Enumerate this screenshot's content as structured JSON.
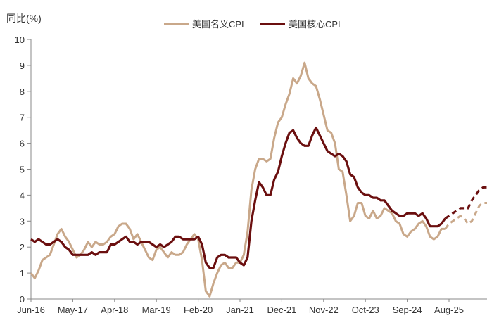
{
  "chart_data": {
    "type": "line",
    "ylabel": "同比(%)",
    "ylim": [
      0,
      10
    ],
    "yticks": [
      0,
      1,
      2,
      3,
      4,
      5,
      6,
      7,
      8,
      9,
      10
    ],
    "x_tick_labels": [
      "Jun-16",
      "May-17",
      "Apr-18",
      "Mar-19",
      "Feb-20",
      "Jan-21",
      "Dec-21",
      "Nov-22",
      "Oct-23",
      "Sep-24",
      "Aug-25"
    ],
    "x_start": "Jun-16",
    "x_end": "Jun-26",
    "legend_position": "top-center",
    "grid": false,
    "series": [
      {
        "name": "美国名义CPI",
        "color": "#c9a88a",
        "actual": [
          [
            "2016-06",
            1.0
          ],
          [
            "2016-07",
            0.8
          ],
          [
            "2016-08",
            1.1
          ],
          [
            "2016-09",
            1.5
          ],
          [
            "2016-10",
            1.6
          ],
          [
            "2016-11",
            1.7
          ],
          [
            "2016-12",
            2.1
          ],
          [
            "2017-01",
            2.5
          ],
          [
            "2017-02",
            2.7
          ],
          [
            "2017-03",
            2.4
          ],
          [
            "2017-04",
            2.2
          ],
          [
            "2017-05",
            1.9
          ],
          [
            "2017-06",
            1.6
          ],
          [
            "2017-07",
            1.7
          ],
          [
            "2017-08",
            1.9
          ],
          [
            "2017-09",
            2.2
          ],
          [
            "2017-10",
            2.0
          ],
          [
            "2017-11",
            2.2
          ],
          [
            "2017-12",
            2.1
          ],
          [
            "2018-01",
            2.1
          ],
          [
            "2018-02",
            2.2
          ],
          [
            "2018-03",
            2.4
          ],
          [
            "2018-04",
            2.5
          ],
          [
            "2018-05",
            2.8
          ],
          [
            "2018-06",
            2.9
          ],
          [
            "2018-07",
            2.9
          ],
          [
            "2018-08",
            2.7
          ],
          [
            "2018-09",
            2.3
          ],
          [
            "2018-10",
            2.5
          ],
          [
            "2018-11",
            2.2
          ],
          [
            "2018-12",
            1.9
          ],
          [
            "2019-01",
            1.6
          ],
          [
            "2019-02",
            1.5
          ],
          [
            "2019-03",
            1.9
          ],
          [
            "2019-04",
            2.0
          ],
          [
            "2019-05",
            1.8
          ],
          [
            "2019-06",
            1.6
          ],
          [
            "2019-07",
            1.8
          ],
          [
            "2019-08",
            1.7
          ],
          [
            "2019-09",
            1.7
          ],
          [
            "2019-10",
            1.8
          ],
          [
            "2019-11",
            2.1
          ],
          [
            "2019-12",
            2.3
          ],
          [
            "2020-01",
            2.5
          ],
          [
            "2020-02",
            2.3
          ],
          [
            "2020-03",
            1.5
          ],
          [
            "2020-04",
            0.3
          ],
          [
            "2020-05",
            0.1
          ],
          [
            "2020-06",
            0.6
          ],
          [
            "2020-07",
            1.0
          ],
          [
            "2020-08",
            1.3
          ],
          [
            "2020-09",
            1.4
          ],
          [
            "2020-10",
            1.2
          ],
          [
            "2020-11",
            1.2
          ],
          [
            "2020-12",
            1.4
          ],
          [
            "2021-01",
            1.4
          ],
          [
            "2021-02",
            1.7
          ],
          [
            "2021-03",
            2.6
          ],
          [
            "2021-04",
            4.2
          ],
          [
            "2021-05",
            5.0
          ],
          [
            "2021-06",
            5.4
          ],
          [
            "2021-07",
            5.4
          ],
          [
            "2021-08",
            5.3
          ],
          [
            "2021-09",
            5.4
          ],
          [
            "2021-10",
            6.2
          ],
          [
            "2021-11",
            6.8
          ],
          [
            "2021-12",
            7.0
          ],
          [
            "2022-01",
            7.5
          ],
          [
            "2022-02",
            7.9
          ],
          [
            "2022-03",
            8.5
          ],
          [
            "2022-04",
            8.3
          ],
          [
            "2022-05",
            8.6
          ],
          [
            "2022-06",
            9.1
          ],
          [
            "2022-07",
            8.5
          ],
          [
            "2022-08",
            8.3
          ],
          [
            "2022-09",
            8.2
          ],
          [
            "2022-10",
            7.7
          ],
          [
            "2022-11",
            7.1
          ],
          [
            "2022-12",
            6.5
          ],
          [
            "2023-01",
            6.4
          ],
          [
            "2023-02",
            6.0
          ],
          [
            "2023-03",
            5.0
          ],
          [
            "2023-04",
            4.9
          ],
          [
            "2023-05",
            4.0
          ],
          [
            "2023-06",
            3.0
          ],
          [
            "2023-07",
            3.2
          ],
          [
            "2023-08",
            3.7
          ],
          [
            "2023-09",
            3.7
          ],
          [
            "2023-10",
            3.2
          ],
          [
            "2023-11",
            3.1
          ],
          [
            "2023-12",
            3.4
          ],
          [
            "2024-01",
            3.1
          ],
          [
            "2024-02",
            3.2
          ],
          [
            "2024-03",
            3.5
          ],
          [
            "2024-04",
            3.4
          ],
          [
            "2024-05",
            3.3
          ],
          [
            "2024-06",
            3.0
          ],
          [
            "2024-07",
            2.9
          ],
          [
            "2024-08",
            2.5
          ],
          [
            "2024-09",
            2.4
          ],
          [
            "2024-10",
            2.6
          ],
          [
            "2024-11",
            2.7
          ],
          [
            "2024-12",
            2.9
          ],
          [
            "2025-01",
            3.0
          ],
          [
            "2025-02",
            2.8
          ],
          [
            "2025-03",
            2.4
          ],
          [
            "2025-04",
            2.3
          ],
          [
            "2025-05",
            2.4
          ],
          [
            "2025-06",
            2.7
          ],
          [
            "2025-07",
            2.7
          ]
        ],
        "forecast": [
          [
            "2025-07",
            2.7
          ],
          [
            "2025-08",
            2.9
          ],
          [
            "2025-09",
            3.0
          ],
          [
            "2025-10",
            3.1
          ],
          [
            "2025-11",
            3.2
          ],
          [
            "2025-12",
            3.1
          ],
          [
            "2026-01",
            2.9
          ],
          [
            "2026-02",
            3.0
          ],
          [
            "2026-03",
            3.3
          ],
          [
            "2026-04",
            3.6
          ],
          [
            "2026-05",
            3.7
          ],
          [
            "2026-06",
            3.7
          ]
        ]
      },
      {
        "name": "美国核心CPI",
        "color": "#6b0f0f",
        "actual": [
          [
            "2016-06",
            2.3
          ],
          [
            "2016-07",
            2.2
          ],
          [
            "2016-08",
            2.3
          ],
          [
            "2016-09",
            2.2
          ],
          [
            "2016-10",
            2.1
          ],
          [
            "2016-11",
            2.1
          ],
          [
            "2016-12",
            2.2
          ],
          [
            "2017-01",
            2.3
          ],
          [
            "2017-02",
            2.2
          ],
          [
            "2017-03",
            2.0
          ],
          [
            "2017-04",
            1.9
          ],
          [
            "2017-05",
            1.7
          ],
          [
            "2017-06",
            1.7
          ],
          [
            "2017-07",
            1.7
          ],
          [
            "2017-08",
            1.7
          ],
          [
            "2017-09",
            1.7
          ],
          [
            "2017-10",
            1.8
          ],
          [
            "2017-11",
            1.7
          ],
          [
            "2017-12",
            1.8
          ],
          [
            "2018-01",
            1.8
          ],
          [
            "2018-02",
            1.8
          ],
          [
            "2018-03",
            2.1
          ],
          [
            "2018-04",
            2.1
          ],
          [
            "2018-05",
            2.2
          ],
          [
            "2018-06",
            2.3
          ],
          [
            "2018-07",
            2.4
          ],
          [
            "2018-08",
            2.2
          ],
          [
            "2018-09",
            2.2
          ],
          [
            "2018-10",
            2.1
          ],
          [
            "2018-11",
            2.2
          ],
          [
            "2018-12",
            2.2
          ],
          [
            "2019-01",
            2.2
          ],
          [
            "2019-02",
            2.1
          ],
          [
            "2019-03",
            2.0
          ],
          [
            "2019-04",
            2.1
          ],
          [
            "2019-05",
            2.0
          ],
          [
            "2019-06",
            2.1
          ],
          [
            "2019-07",
            2.2
          ],
          [
            "2019-08",
            2.4
          ],
          [
            "2019-09",
            2.4
          ],
          [
            "2019-10",
            2.3
          ],
          [
            "2019-11",
            2.3
          ],
          [
            "2019-12",
            2.3
          ],
          [
            "2020-01",
            2.3
          ],
          [
            "2020-02",
            2.4
          ],
          [
            "2020-03",
            2.1
          ],
          [
            "2020-04",
            1.4
          ],
          [
            "2020-05",
            1.2
          ],
          [
            "2020-06",
            1.2
          ],
          [
            "2020-07",
            1.6
          ],
          [
            "2020-08",
            1.7
          ],
          [
            "2020-09",
            1.7
          ],
          [
            "2020-10",
            1.6
          ],
          [
            "2020-11",
            1.6
          ],
          [
            "2020-12",
            1.6
          ],
          [
            "2021-01",
            1.4
          ],
          [
            "2021-02",
            1.3
          ],
          [
            "2021-03",
            1.6
          ],
          [
            "2021-04",
            3.0
          ],
          [
            "2021-05",
            3.8
          ],
          [
            "2021-06",
            4.5
          ],
          [
            "2021-07",
            4.3
          ],
          [
            "2021-08",
            4.0
          ],
          [
            "2021-09",
            4.0
          ],
          [
            "2021-10",
            4.6
          ],
          [
            "2021-11",
            4.9
          ],
          [
            "2021-12",
            5.5
          ],
          [
            "2022-01",
            6.0
          ],
          [
            "2022-02",
            6.4
          ],
          [
            "2022-03",
            6.5
          ],
          [
            "2022-04",
            6.2
          ],
          [
            "2022-05",
            6.0
          ],
          [
            "2022-06",
            5.9
          ],
          [
            "2022-07",
            5.9
          ],
          [
            "2022-08",
            6.3
          ],
          [
            "2022-09",
            6.6
          ],
          [
            "2022-10",
            6.3
          ],
          [
            "2022-11",
            6.0
          ],
          [
            "2022-12",
            5.7
          ],
          [
            "2023-01",
            5.6
          ],
          [
            "2023-02",
            5.5
          ],
          [
            "2023-03",
            5.6
          ],
          [
            "2023-04",
            5.5
          ],
          [
            "2023-05",
            5.3
          ],
          [
            "2023-06",
            4.8
          ],
          [
            "2023-07",
            4.7
          ],
          [
            "2023-08",
            4.3
          ],
          [
            "2023-09",
            4.1
          ],
          [
            "2023-10",
            4.0
          ],
          [
            "2023-11",
            4.0
          ],
          [
            "2023-12",
            3.9
          ],
          [
            "2024-01",
            3.9
          ],
          [
            "2024-02",
            3.8
          ],
          [
            "2024-03",
            3.8
          ],
          [
            "2024-04",
            3.6
          ],
          [
            "2024-05",
            3.4
          ],
          [
            "2024-06",
            3.3
          ],
          [
            "2024-07",
            3.2
          ],
          [
            "2024-08",
            3.2
          ],
          [
            "2024-09",
            3.3
          ],
          [
            "2024-10",
            3.3
          ],
          [
            "2024-11",
            3.3
          ],
          [
            "2024-12",
            3.2
          ],
          [
            "2025-01",
            3.3
          ],
          [
            "2025-02",
            3.1
          ],
          [
            "2025-03",
            2.8
          ],
          [
            "2025-04",
            2.8
          ],
          [
            "2025-05",
            2.8
          ],
          [
            "2025-06",
            2.9
          ],
          [
            "2025-07",
            3.1
          ]
        ],
        "forecast": [
          [
            "2025-07",
            3.1
          ],
          [
            "2025-08",
            3.2
          ],
          [
            "2025-09",
            3.3
          ],
          [
            "2025-10",
            3.4
          ],
          [
            "2025-11",
            3.5
          ],
          [
            "2025-12",
            3.5
          ],
          [
            "2026-01",
            3.5
          ],
          [
            "2026-02",
            3.8
          ],
          [
            "2026-03",
            4.0
          ],
          [
            "2026-04",
            4.2
          ],
          [
            "2026-05",
            4.3
          ],
          [
            "2026-06",
            4.3
          ]
        ]
      }
    ]
  }
}
